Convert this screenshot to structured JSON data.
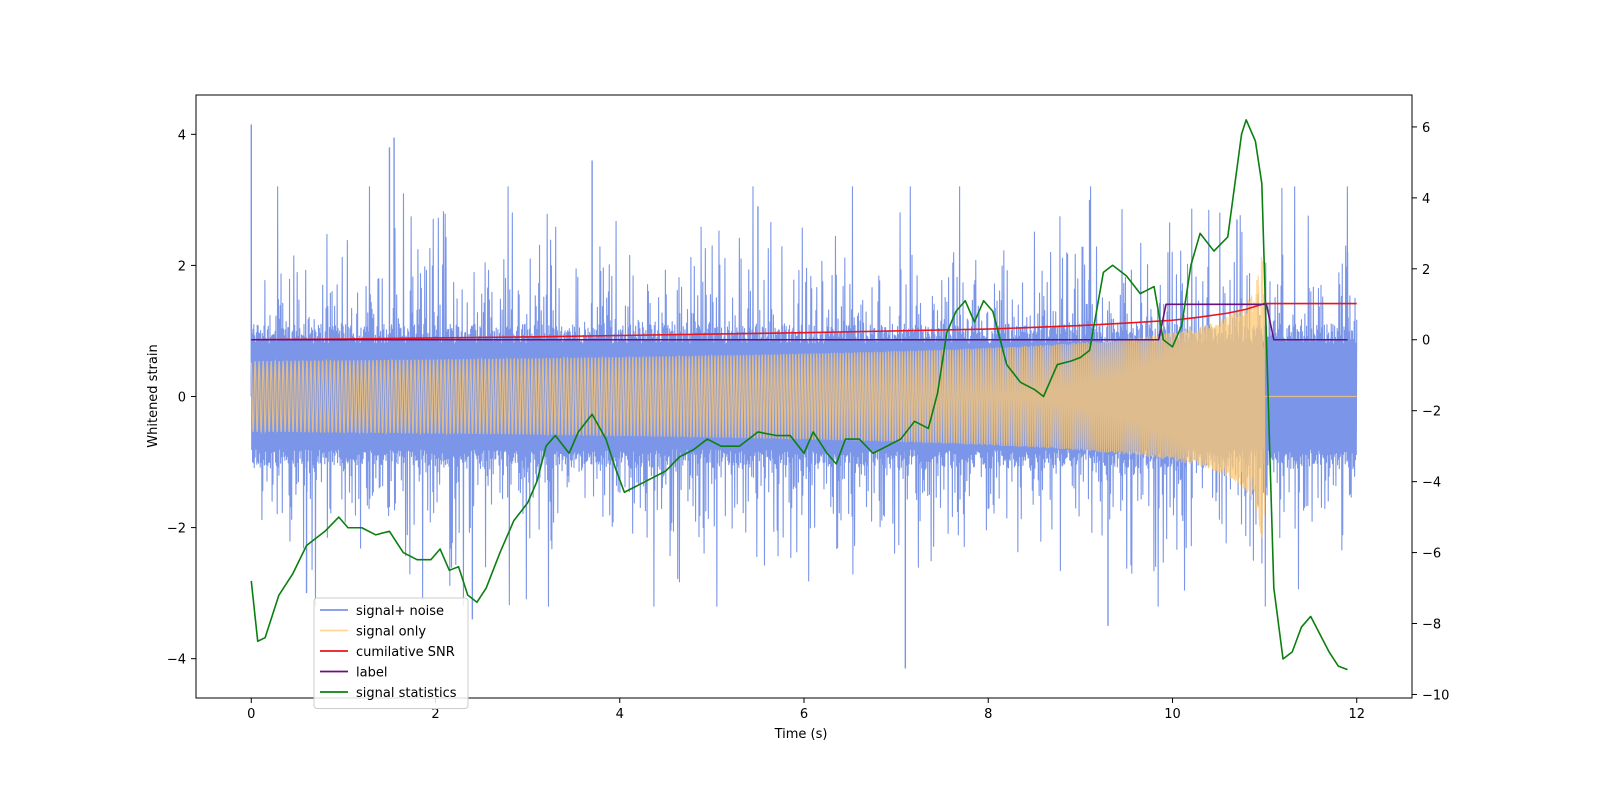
{
  "chart_data": {
    "type": "line",
    "title": "",
    "xlabel": "Time (s)",
    "ylabel": "Whitened strain",
    "ylabel_right": "",
    "xlim": [
      -0.6,
      12.6
    ],
    "ylim_left": [
      -4.6,
      4.6
    ],
    "ylim_right": [
      -10.1,
      6.9
    ],
    "x_ticks": [
      0,
      2,
      4,
      6,
      8,
      10,
      12
    ],
    "y_ticks_left": [
      -4,
      -2,
      0,
      2,
      4
    ],
    "y_ticks_right": [
      -10,
      -8,
      -6,
      -4,
      -2,
      0,
      2,
      4,
      6
    ],
    "grid": false,
    "legend_position": "lower-left",
    "series": [
      {
        "name": "signal+ noise",
        "axis": "left",
        "color": "#7b96e8",
        "kind": "noise_band",
        "x_range": [
          0,
          12
        ],
        "band_mean": 0,
        "band_typical_amplitude": 1.3,
        "notable_spikes": [
          [
            0.0,
            4.15
          ],
          [
            0.6,
            -3.0
          ],
          [
            1.5,
            3.8
          ],
          [
            1.55,
            3.95
          ],
          [
            2.4,
            -3.4
          ],
          [
            3.7,
            3.6
          ],
          [
            5.5,
            2.9
          ],
          [
            7.1,
            -4.15
          ],
          [
            9.1,
            3.0
          ],
          [
            9.3,
            -3.5
          ],
          [
            10.7,
            2.7
          ],
          [
            11.9,
            2.2
          ]
        ]
      },
      {
        "name": "signal only",
        "axis": "left",
        "color": "#ffc870",
        "kind": "chirp",
        "x_range": [
          0,
          12
        ],
        "merger_time": 11.0,
        "peak_amplitude": 2.2
      },
      {
        "name": "cumilative SNR",
        "axis": "right",
        "color": "#e8161e",
        "x": [
          0,
          1,
          2,
          3,
          4,
          5,
          6,
          7,
          8,
          9,
          9.5,
          10,
          10.3,
          10.6,
          10.8,
          10.9,
          11.0,
          11.05,
          12
        ],
        "y": [
          0.0,
          0.02,
          0.05,
          0.08,
          0.12,
          0.16,
          0.2,
          0.25,
          0.3,
          0.4,
          0.47,
          0.55,
          0.64,
          0.75,
          0.86,
          0.94,
          1.02,
          1.02,
          1.02
        ]
      },
      {
        "name": "label",
        "axis": "right",
        "color": "#6c0f7e",
        "x": [
          0,
          9.85,
          9.93,
          11.02,
          11.1,
          11.9
        ],
        "y": [
          0,
          0,
          1,
          1,
          0,
          0
        ]
      },
      {
        "name": "signal statistics",
        "axis": "right",
        "color": "#0b7f10",
        "x": [
          0.0,
          0.07,
          0.15,
          0.3,
          0.45,
          0.6,
          0.8,
          0.95,
          1.05,
          1.2,
          1.35,
          1.5,
          1.65,
          1.8,
          1.95,
          2.05,
          2.15,
          2.25,
          2.35,
          2.45,
          2.55,
          2.7,
          2.85,
          3.0,
          3.1,
          3.2,
          3.3,
          3.45,
          3.55,
          3.7,
          3.85,
          3.95,
          4.05,
          4.2,
          4.35,
          4.5,
          4.65,
          4.8,
          4.95,
          5.1,
          5.3,
          5.5,
          5.7,
          5.85,
          6.0,
          6.1,
          6.25,
          6.35,
          6.45,
          6.6,
          6.75,
          6.9,
          7.05,
          7.2,
          7.35,
          7.45,
          7.55,
          7.65,
          7.75,
          7.85,
          7.95,
          8.05,
          8.2,
          8.35,
          8.5,
          8.6,
          8.75,
          8.9,
          9.0,
          9.1,
          9.25,
          9.35,
          9.5,
          9.65,
          9.8,
          9.9,
          10.0,
          10.1,
          10.2,
          10.3,
          10.45,
          10.6,
          10.75,
          10.8,
          10.9,
          10.97,
          11.02,
          11.1,
          11.2,
          11.3,
          11.4,
          11.5,
          11.6,
          11.7,
          11.8,
          11.9
        ],
        "y": [
          -6.8,
          -8.5,
          -8.4,
          -7.2,
          -6.6,
          -5.8,
          -5.4,
          -5.0,
          -5.3,
          -5.3,
          -5.5,
          -5.4,
          -6.0,
          -6.2,
          -6.2,
          -5.9,
          -6.5,
          -6.4,
          -7.2,
          -7.4,
          -7.0,
          -6.0,
          -5.1,
          -4.6,
          -4.0,
          -3.0,
          -2.7,
          -3.2,
          -2.6,
          -2.1,
          -2.8,
          -3.6,
          -4.3,
          -4.1,
          -3.9,
          -3.7,
          -3.3,
          -3.1,
          -2.8,
          -3.0,
          -3.0,
          -2.6,
          -2.7,
          -2.7,
          -3.2,
          -2.6,
          -3.2,
          -3.5,
          -2.8,
          -2.8,
          -3.2,
          -3.0,
          -2.8,
          -2.3,
          -2.5,
          -1.5,
          0.2,
          0.8,
          1.1,
          0.5,
          1.1,
          0.8,
          -0.7,
          -1.2,
          -1.4,
          -1.6,
          -0.7,
          -0.6,
          -0.5,
          -0.3,
          1.9,
          2.1,
          1.8,
          1.3,
          1.5,
          0.0,
          -0.2,
          0.4,
          2.1,
          3.0,
          2.5,
          2.9,
          5.8,
          6.2,
          5.6,
          4.4,
          0.0,
          -7.0,
          -9.0,
          -8.8,
          -8.1,
          -7.8,
          -8.3,
          -8.8,
          -9.2,
          -9.3
        ]
      }
    ]
  }
}
